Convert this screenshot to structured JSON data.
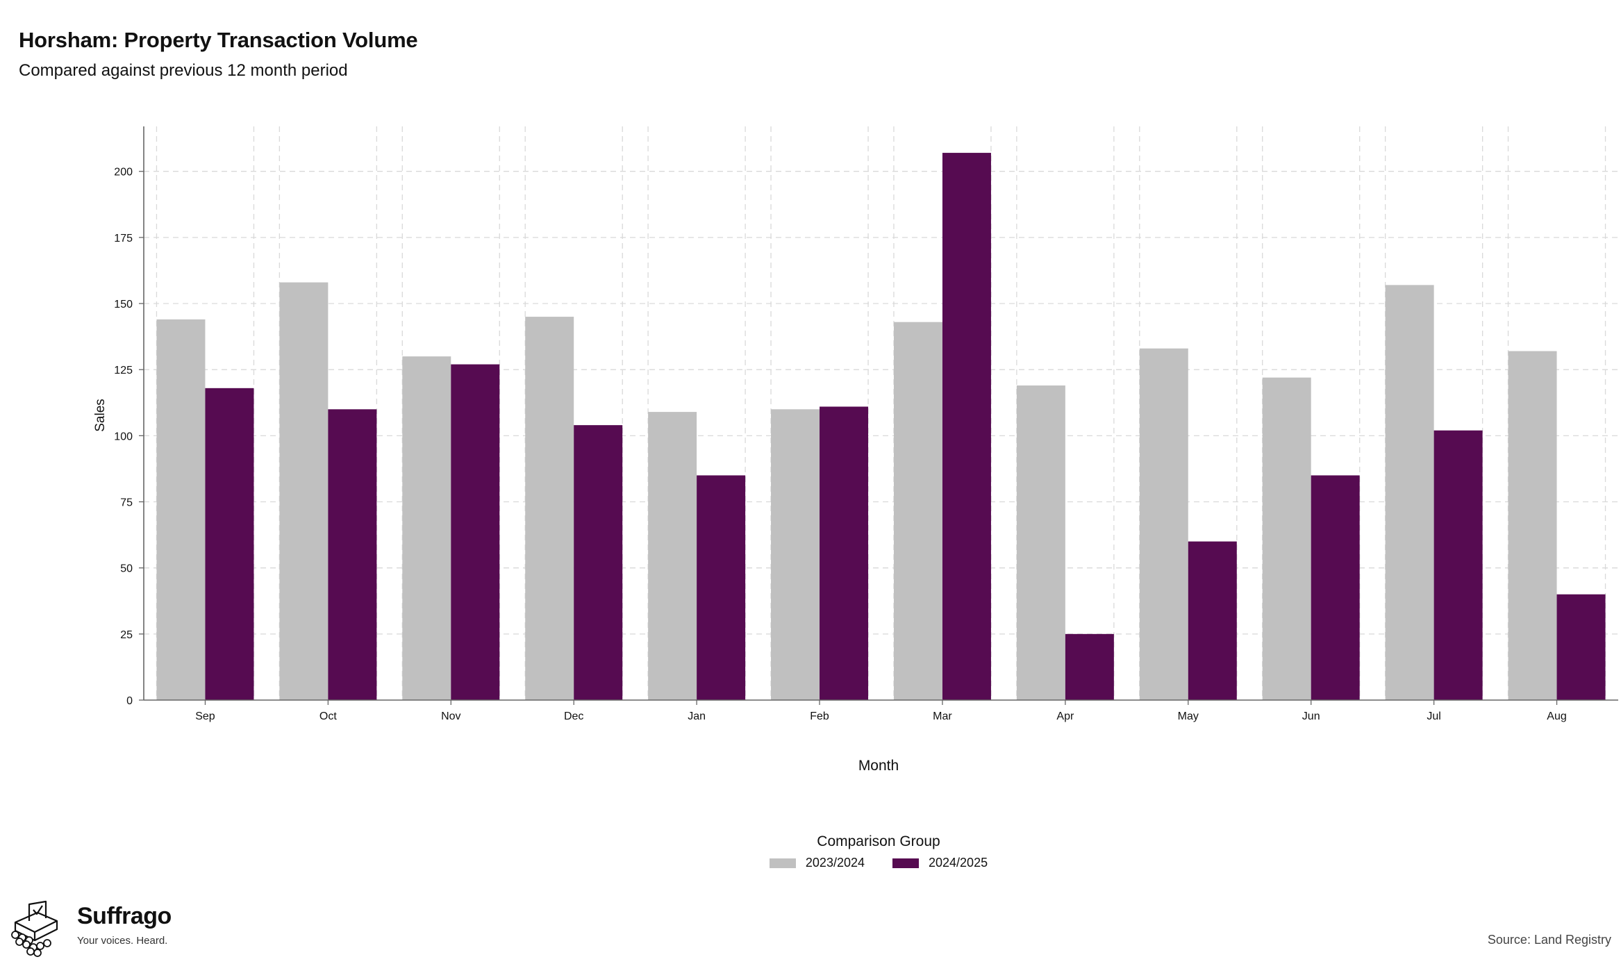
{
  "chart_data": {
    "type": "bar",
    "title": "Horsham: Property Transaction Volume",
    "subtitle": "Compared against previous 12 month period",
    "xlabel": "Month",
    "ylabel": "Sales",
    "categories": [
      "Sep",
      "Oct",
      "Nov",
      "Dec",
      "Jan",
      "Feb",
      "Mar",
      "Apr",
      "May",
      "Jun",
      "Jul",
      "Aug"
    ],
    "series": [
      {
        "name": "2023/2024",
        "color": "#c0c0c0",
        "values": [
          144,
          158,
          130,
          145,
          109,
          110,
          143,
          119,
          133,
          122,
          157,
          132
        ]
      },
      {
        "name": "2024/2025",
        "color": "#560b51",
        "values": [
          118,
          110,
          127,
          104,
          85,
          111,
          207,
          25,
          60,
          85,
          102,
          40
        ]
      }
    ],
    "yticks": [
      0,
      25,
      50,
      75,
      100,
      125,
      150,
      175,
      200
    ],
    "ylim": [
      0,
      217
    ],
    "grid": true,
    "legend_title": "Comparison Group",
    "legend_position": "bottom"
  },
  "brand": {
    "name": "Suffrago",
    "tagline": "Your voices. Heard.",
    "logo_icon": "ballot-box-icon"
  },
  "source": "Source: Land Registry"
}
